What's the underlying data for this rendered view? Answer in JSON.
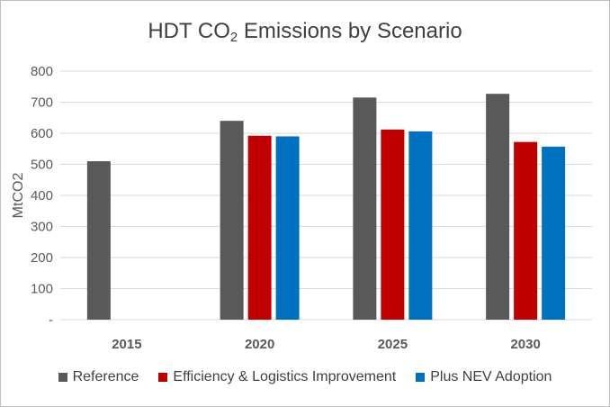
{
  "chart_data": {
    "type": "bar",
    "title_main": "HDT CO",
    "title_sub": "2",
    "title_rest": " Emissions by Scenario",
    "ylabel": "MtCO2",
    "xlabel": "",
    "categories": [
      "2015",
      "2020",
      "2025",
      "2030"
    ],
    "ylim": [
      0,
      800
    ],
    "yticks": [
      {
        "value": 0,
        "label": "-"
      },
      {
        "value": 100,
        "label": "100"
      },
      {
        "value": 200,
        "label": "200"
      },
      {
        "value": 300,
        "label": "300"
      },
      {
        "value": 400,
        "label": "400"
      },
      {
        "value": 500,
        "label": "500"
      },
      {
        "value": 600,
        "label": "600"
      },
      {
        "value": 700,
        "label": "700"
      },
      {
        "value": 800,
        "label": "800"
      }
    ],
    "grid": true,
    "legend_position": "bottom",
    "series": [
      {
        "name": "Reference",
        "color": "#595959",
        "values": [
          510,
          640,
          715,
          727
        ]
      },
      {
        "name": "Efficiency & Logistics Improvement",
        "color": "#c00000",
        "values": [
          null,
          592,
          612,
          572
        ]
      },
      {
        "name": "Plus NEV Adoption",
        "color": "#0070c0",
        "values": [
          null,
          590,
          606,
          557
        ]
      }
    ]
  }
}
